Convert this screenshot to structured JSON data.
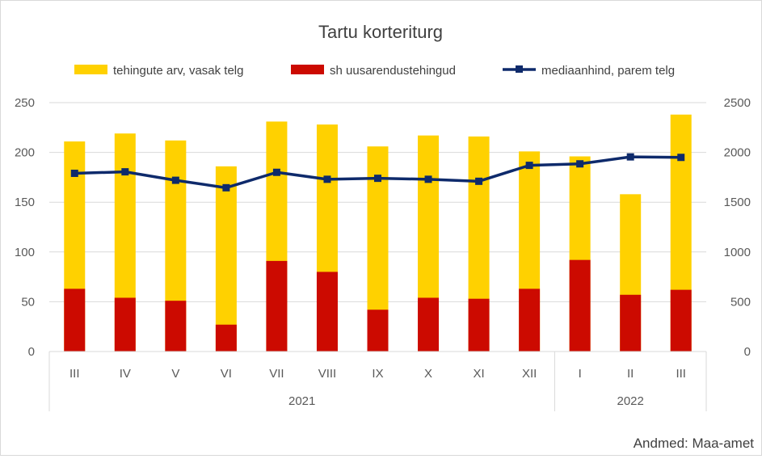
{
  "colors": {
    "deals": "#FFD100",
    "new_dev": "#CC0A00",
    "median": "#0E2A6B",
    "grid": "#d9d9d9",
    "axis_text": "#595959"
  },
  "source": "Andmed: Maa-amet",
  "chart_data": {
    "type": "bar",
    "title": "Tartu korteriturg",
    "categories": [
      "III",
      "IV",
      "V",
      "VI",
      "VII",
      "VIII",
      "IX",
      "X",
      "XI",
      "XII",
      "I",
      "II",
      "III"
    ],
    "groups": [
      {
        "label": "2021",
        "count": 10
      },
      {
        "label": "2022",
        "count": 3
      }
    ],
    "series": [
      {
        "name": "tehingute arv, vasak telg",
        "type": "bar",
        "axis": "left",
        "values": [
          211,
          219,
          212,
          186,
          231,
          228,
          206,
          217,
          216,
          201,
          196,
          158,
          238
        ]
      },
      {
        "name": "sh uusarendustehingud",
        "type": "bar",
        "axis": "left",
        "values": [
          63,
          54,
          51,
          27,
          91,
          80,
          42,
          54,
          53,
          63,
          92,
          57,
          62
        ]
      },
      {
        "name": "mediaanhind, parem telg",
        "type": "line",
        "axis": "right",
        "values": [
          1790,
          1805,
          1720,
          1645,
          1800,
          1730,
          1740,
          1730,
          1710,
          1870,
          1885,
          1955,
          1950
        ]
      }
    ],
    "y_left": {
      "min": 0,
      "max": 250,
      "ticks": [
        "0",
        "50",
        "100",
        "150",
        "200",
        "250"
      ]
    },
    "y_right": {
      "min": 0,
      "max": 2500,
      "ticks": [
        "0",
        "500",
        "1000",
        "1500",
        "2000",
        "2500"
      ]
    },
    "legend_position": "top",
    "grid": true
  }
}
